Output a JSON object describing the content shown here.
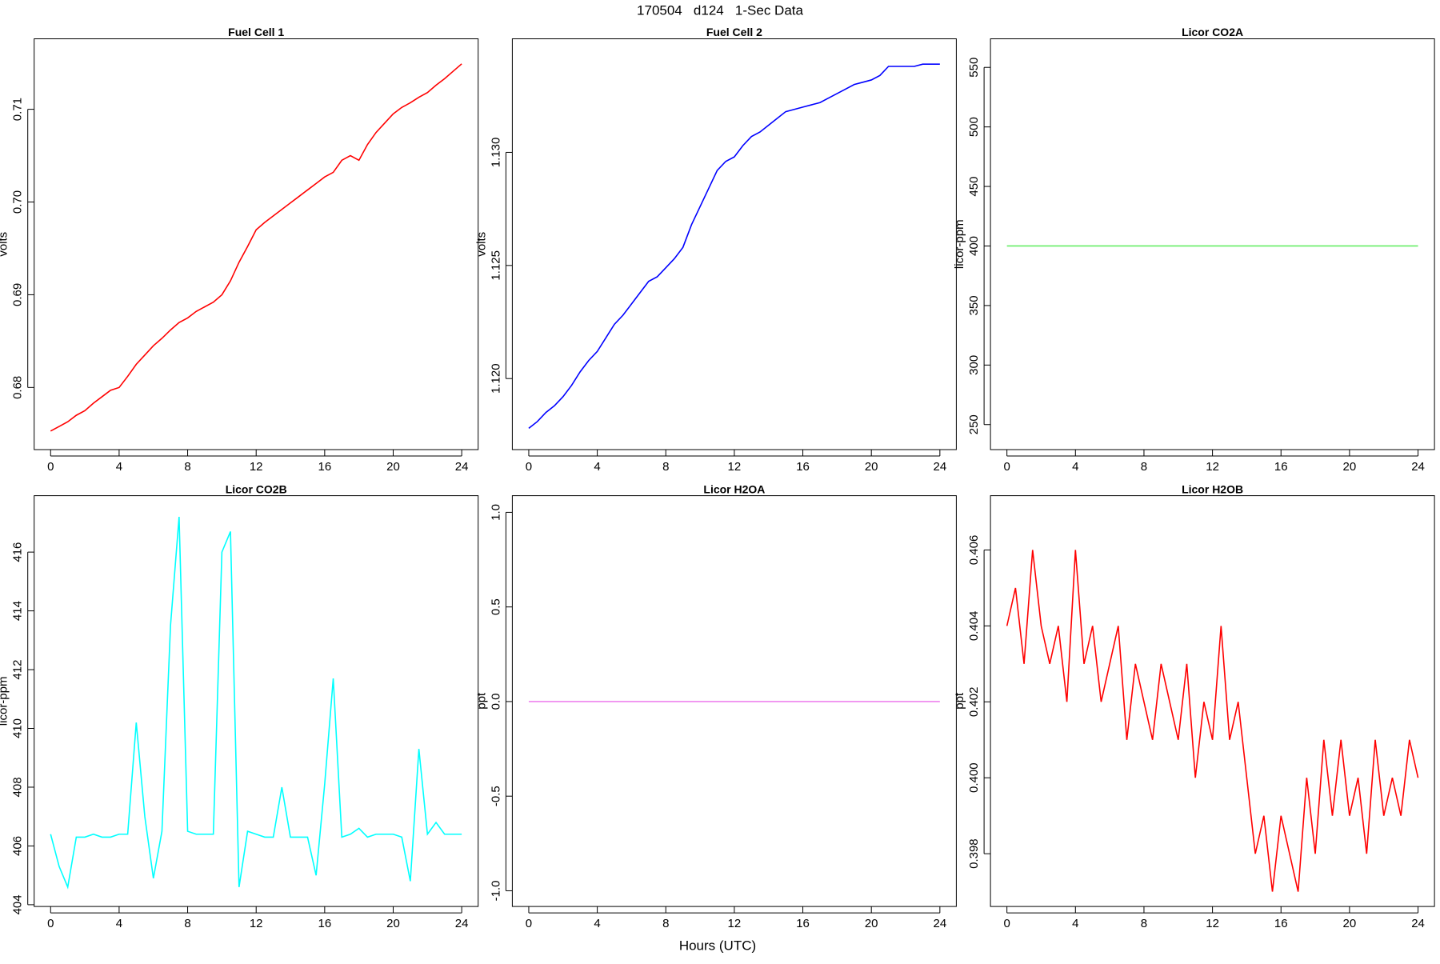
{
  "title": "170504   d124   1-Sec Data",
  "xlabel": "Hours (UTC)",
  "chart_data": [
    {
      "type": "line",
      "title": "Fuel Cell 1",
      "ylabel": "volts",
      "x": [
        0,
        0.5,
        1,
        1.5,
        2,
        2.5,
        3,
        3.5,
        4,
        4.5,
        5,
        5.5,
        6,
        6.5,
        7,
        7.5,
        8,
        8.5,
        9,
        9.5,
        10,
        10.5,
        11,
        11.5,
        12,
        12.5,
        13,
        13.5,
        14,
        14.5,
        15,
        15.5,
        16,
        16.5,
        17,
        17.5,
        18,
        18.5,
        19,
        19.5,
        20,
        20.5,
        21,
        21.5,
        22,
        22.5,
        23,
        23.5,
        24
      ],
      "series": [
        {
          "color": "#ff0000",
          "values": [
            0.6753,
            0.6758,
            0.6763,
            0.677,
            0.6775,
            0.6783,
            0.679,
            0.6797,
            0.68,
            0.6812,
            0.6825,
            0.6835,
            0.6845,
            0.6853,
            0.6862,
            0.687,
            0.6875,
            0.6882,
            0.6887,
            0.6892,
            0.69,
            0.6915,
            0.6935,
            0.6952,
            0.697,
            0.6978,
            0.6985,
            0.6992,
            0.6999,
            0.7006,
            0.7013,
            0.702,
            0.7027,
            0.7032,
            0.7045,
            0.705,
            0.7045,
            0.7062,
            0.7075,
            0.7085,
            0.7095,
            0.7102,
            0.7107,
            0.7113,
            0.7118,
            0.7126,
            0.7133,
            0.7141,
            0.7149
          ]
        }
      ],
      "xlim": [
        -0.96,
        24.96
      ],
      "xticks": [
        0,
        4,
        8,
        12,
        16,
        20,
        24
      ],
      "ylim": [
        0.6733,
        0.7176
      ],
      "yticks": [
        0.68,
        0.69,
        {
          "value": 0.7,
          "label": "0.70"
        },
        0.71
      ]
    },
    {
      "type": "line",
      "title": "Fuel Cell 2",
      "ylabel": "volts",
      "x": [
        0,
        0.5,
        1,
        1.5,
        2,
        2.5,
        3,
        3.5,
        4,
        4.5,
        5,
        5.5,
        6,
        6.5,
        7,
        7.5,
        8,
        8.5,
        9,
        9.5,
        10,
        10.5,
        11,
        11.5,
        12,
        12.5,
        13,
        13.5,
        14,
        14.5,
        15,
        15.5,
        16,
        16.5,
        17,
        17.5,
        18,
        18.5,
        19,
        19.5,
        20,
        20.5,
        21,
        21.5,
        22,
        22.5,
        23,
        23.5,
        24
      ],
      "series": [
        {
          "color": "#0000ff",
          "values": [
            1.1178,
            1.1181,
            1.1185,
            1.1188,
            1.1192,
            1.1197,
            1.1203,
            1.1208,
            1.1212,
            1.1218,
            1.1224,
            1.1228,
            1.1233,
            1.1238,
            1.1243,
            1.1245,
            1.1249,
            1.1253,
            1.1258,
            1.1268,
            1.1276,
            1.1284,
            1.1292,
            1.1296,
            1.1298,
            1.1303,
            1.1307,
            1.1309,
            1.1312,
            1.1315,
            1.1318,
            1.1319,
            1.132,
            1.1321,
            1.1322,
            1.1324,
            1.1326,
            1.1328,
            1.133,
            1.1331,
            1.1332,
            1.1334,
            1.1338,
            1.1338,
            1.1338,
            1.1338,
            1.1339,
            1.1339,
            1.1339
          ]
        }
      ],
      "xlim": [
        -0.96,
        24.96
      ],
      "xticks": [
        0,
        4,
        8,
        12,
        16,
        20,
        24
      ],
      "ylim": [
        1.11686,
        1.13502
      ],
      "yticks": [
        {
          "value": 1.12,
          "label": "1.120"
        },
        {
          "value": 1.125,
          "label": "1.125"
        },
        {
          "value": 1.13,
          "label": "1.130"
        }
      ]
    },
    {
      "type": "line",
      "title": "Licor CO2A",
      "ylabel": "licor-ppm",
      "x": [
        0,
        24
      ],
      "series": [
        {
          "color": "#66ee66",
          "values": [
            400,
            400
          ]
        }
      ],
      "xlim": [
        -0.96,
        24.96
      ],
      "xticks": [
        0,
        4,
        8,
        12,
        16,
        20,
        24
      ],
      "ylim": [
        229,
        574
      ],
      "yticks": [
        250,
        300,
        350,
        400,
        450,
        500,
        550
      ]
    },
    {
      "type": "line",
      "title": "Licor CO2B",
      "ylabel": "licor-ppm",
      "x": [
        0,
        0.5,
        1,
        1.5,
        2,
        2.5,
        3,
        3.5,
        4,
        4.5,
        5,
        5.5,
        6,
        6.5,
        7,
        7.5,
        8,
        8.5,
        9,
        9.5,
        10,
        10.5,
        11,
        11.5,
        12,
        12.5,
        13,
        13.5,
        14,
        14.5,
        15,
        15.5,
        16,
        16.5,
        17,
        17.5,
        18,
        18.5,
        19,
        19.5,
        20,
        20.5,
        21,
        21.5,
        22,
        22.5,
        23,
        23.5,
        24
      ],
      "series": [
        {
          "color": "#00ffff",
          "values": [
            406.4,
            405.3,
            404.6,
            406.3,
            406.3,
            406.4,
            406.3,
            406.3,
            406.4,
            406.4,
            410.2,
            407.0,
            404.9,
            406.5,
            413.5,
            417.2,
            406.5,
            406.4,
            406.4,
            406.4,
            416.0,
            416.7,
            404.6,
            406.5,
            406.4,
            406.3,
            406.3,
            408.0,
            406.3,
            406.3,
            406.3,
            405.0,
            408.1,
            411.7,
            406.3,
            406.4,
            406.6,
            406.3,
            406.4,
            406.4,
            406.4,
            406.3,
            404.8,
            409.3,
            406.4,
            406.8,
            406.4,
            406.4,
            406.4
          ]
        }
      ],
      "xlim": [
        -0.96,
        24.96
      ],
      "xticks": [
        0,
        4,
        8,
        12,
        16,
        20,
        24
      ],
      "ylim": [
        403.94,
        417.92
      ],
      "yticks": [
        404,
        406,
        408,
        410,
        412,
        414,
        416
      ]
    },
    {
      "type": "line",
      "title": "Licor H2OA",
      "ylabel": "ppt",
      "x": [
        0,
        24
      ],
      "series": [
        {
          "color": "#ee82ee",
          "values": [
            0,
            0
          ]
        }
      ],
      "xlim": [
        -0.96,
        24.96
      ],
      "xticks": [
        0,
        4,
        8,
        12,
        16,
        20,
        24
      ],
      "ylim": [
        -1.083,
        1.088
      ],
      "yticks": [
        {
          "value": -1,
          "label": "-1.0"
        },
        -0.5,
        {
          "value": 0,
          "label": "0.0"
        },
        0.5,
        {
          "value": 1,
          "label": "1.0"
        }
      ]
    },
    {
      "type": "line",
      "title": "Licor H2OB",
      "ylabel": "ppt",
      "x": [
        0,
        0.5,
        1,
        1.5,
        2,
        2.5,
        3,
        3.5,
        4,
        4.5,
        5,
        5.5,
        6,
        6.5,
        7,
        7.5,
        8,
        8.5,
        9,
        9.5,
        10,
        10.5,
        11,
        11.5,
        12,
        12.5,
        13,
        13.5,
        14,
        14.5,
        15,
        15.5,
        16,
        16.5,
        17,
        17.5,
        18,
        18.5,
        19,
        19.5,
        20,
        20.5,
        21,
        21.5,
        22,
        22.5,
        23,
        23.5,
        24
      ],
      "series": [
        {
          "color": "#ff0000",
          "values": [
            0.404,
            0.405,
            0.403,
            0.406,
            0.404,
            0.403,
            0.404,
            0.402,
            0.406,
            0.403,
            0.404,
            0.402,
            0.403,
            0.404,
            0.401,
            0.403,
            0.402,
            0.401,
            0.403,
            0.402,
            0.401,
            0.403,
            0.4,
            0.402,
            0.401,
            0.404,
            0.401,
            0.402,
            0.4,
            0.398,
            0.399,
            0.397,
            0.399,
            0.398,
            0.397,
            0.4,
            0.398,
            0.401,
            0.399,
            0.401,
            0.399,
            0.4,
            0.398,
            0.401,
            0.399,
            0.4,
            0.399,
            0.401,
            0.4
          ]
        }
      ],
      "xlim": [
        -0.96,
        24.96
      ],
      "xticks": [
        0,
        4,
        8,
        12,
        16,
        20,
        24
      ],
      "ylim": [
        0.39661,
        0.40743
      ],
      "yticks": [
        0.398,
        {
          "value": 0.4,
          "label": "0.400"
        },
        0.402,
        0.404,
        0.406
      ]
    }
  ]
}
